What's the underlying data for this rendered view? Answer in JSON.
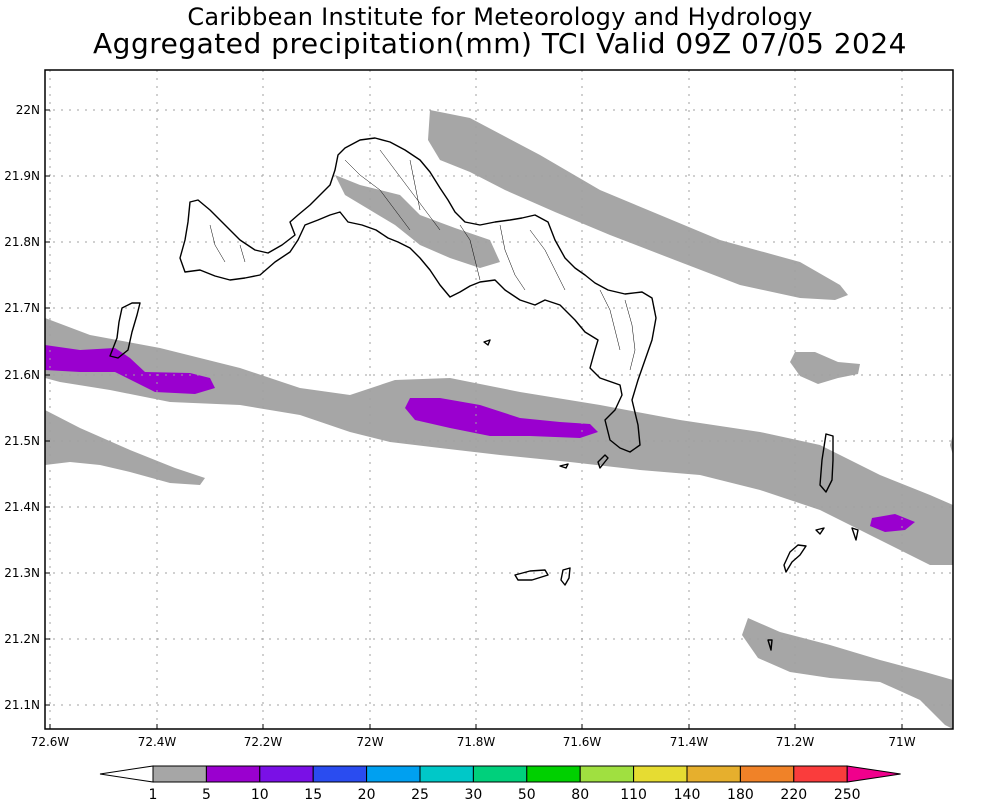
{
  "title": {
    "line1": "Caribbean Institute for Meteorology and Hydrology",
    "line2": "Aggregated precipitation(mm) TCI Valid 09Z 07/05 2024"
  },
  "axes": {
    "lat_ticks": [
      "22N",
      "21.9N",
      "21.8N",
      "21.7N",
      "21.6N",
      "21.5N",
      "21.4N",
      "21.3N",
      "21.2N",
      "21.1N"
    ],
    "lon_ticks": [
      "72.6W",
      "72.4W",
      "72.2W",
      "72W",
      "71.8W",
      "71.6W",
      "71.4W",
      "71.2W",
      "71W"
    ]
  },
  "colorbar": {
    "labels": [
      "1",
      "5",
      "10",
      "15",
      "20",
      "25",
      "30",
      "50",
      "80",
      "110",
      "140",
      "180",
      "220",
      "250"
    ],
    "colors": [
      "#a6a6a6",
      "#9a00cf",
      "#7a10e6",
      "#2a4cf0",
      "#00a0f0",
      "#00c8c8",
      "#00d07c",
      "#00d000",
      "#a0e040",
      "#e6dc32",
      "#e6af2d",
      "#f08228",
      "#fa3c3c",
      "#f0008c"
    ]
  },
  "chart_data": {
    "type": "map",
    "title": "Caribbean Institute for Meteorology and Hydrology",
    "subtitle": "Aggregated precipitation(mm) TCI Valid 09Z 07/05 2024",
    "units": "mm",
    "grid": true,
    "precipitation_bands": [
      {
        "class": "1-5 mm",
        "color": "#a6a6a6",
        "areas": [
          "band north of Providenciales/North Caicos",
          "band west of Providenciales",
          "main band crossing south of Caicos Islands to Grand Turk",
          "southwest band near 21.5N",
          "southeast band near 21.2N",
          "patch near 71.15W 21.6N"
        ]
      },
      {
        "class": "5-10 mm",
        "color": "#9a00cf",
        "areas": [
          "west of 72.4W near 21.6N",
          "near 71.85W-71.6W 21.5N",
          "near 71.05W 21.42N"
        ]
      }
    ]
  }
}
